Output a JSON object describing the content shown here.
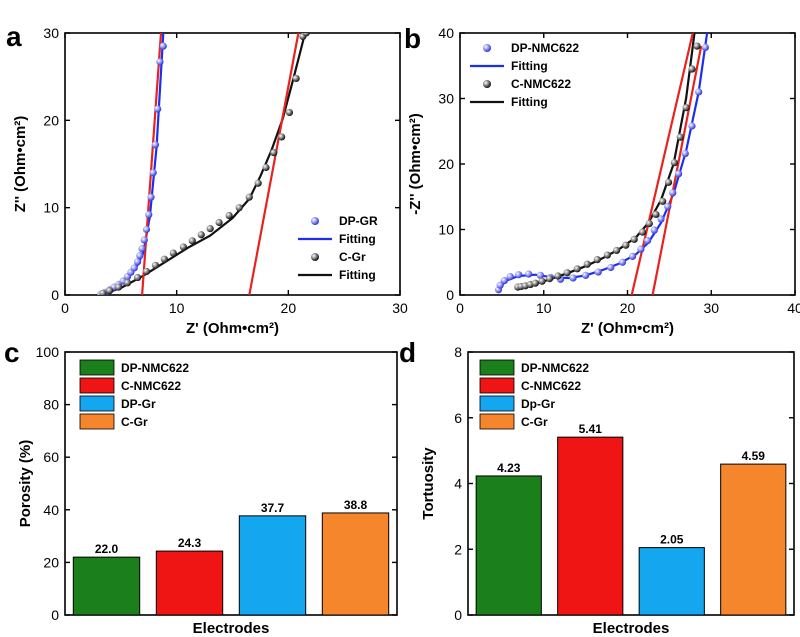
{
  "chart_data": [
    {
      "panel": "a",
      "type": "scatter",
      "xlabel": "Z' (Ohm•cm²)",
      "ylabel": "Z'' (Ohm•cm²)",
      "xlim": [
        0,
        30
      ],
      "ylim": [
        0,
        30
      ],
      "xticks": [
        0,
        10,
        20,
        30
      ],
      "yticks": [
        0,
        10,
        20,
        30
      ],
      "legend_position": "right",
      "series": [
        {
          "name": "DP-GR",
          "kind": "points",
          "color": "#2f36e0",
          "x": [
            3.2,
            3.6,
            4.0,
            4.4,
            4.8,
            5.2,
            5.6,
            5.9,
            6.2,
            6.5,
            6.7,
            6.9,
            7.1,
            7.3,
            7.5,
            7.7,
            7.9,
            8.1,
            8.3,
            8.5,
            8.8
          ],
          "y": [
            0.1,
            0.3,
            0.6,
            0.9,
            1.2,
            1.6,
            2.1,
            2.6,
            3.1,
            3.8,
            4.5,
            5.3,
            6.3,
            7.5,
            9.2,
            11.2,
            14.0,
            17.2,
            21.3,
            26.7,
            28.5
          ]
        },
        {
          "name": "Fitting",
          "kind": "line",
          "color": "#1a2ff0",
          "x": [
            3.2,
            4.0,
            4.8,
            5.6,
            6.4,
            7.0,
            7.6,
            8.2,
            8.8
          ],
          "y": [
            0.1,
            0.5,
            1.1,
            2.0,
            3.2,
            4.8,
            9.0,
            17.0,
            30.0
          ]
        },
        {
          "name": "C-Gr",
          "kind": "points",
          "color": "#111111",
          "x": [
            3.4,
            4.0,
            4.8,
            5.6,
            6.5,
            7.3,
            8.1,
            8.9,
            9.7,
            10.6,
            11.4,
            12.2,
            13.0,
            13.8,
            14.7,
            15.6,
            16.5,
            17.3,
            18.0,
            18.7,
            19.4,
            20.1,
            20.7,
            21.3,
            21.6
          ],
          "y": [
            0.2,
            0.5,
            0.9,
            1.4,
            2.0,
            2.7,
            3.4,
            4.1,
            4.8,
            5.5,
            6.2,
            6.9,
            7.6,
            8.3,
            9.1,
            10.0,
            11.2,
            12.8,
            14.6,
            16.3,
            18.1,
            20.9,
            24.8,
            29.6,
            30.0
          ]
        },
        {
          "name": "Fitting",
          "kind": "line",
          "color": "#111111",
          "x": [
            3.4,
            5.0,
            7.0,
            9.0,
            11.0,
            13.0,
            15.0,
            16.5,
            17.5,
            18.5,
            19.5,
            20.5,
            21.5
          ],
          "y": [
            0.1,
            0.8,
            2.2,
            3.8,
            5.4,
            6.8,
            8.8,
            11.0,
            13.6,
            16.6,
            20.2,
            25.0,
            30.0
          ]
        },
        {
          "name": "",
          "kind": "fit-line",
          "color": "#e8231f",
          "x": [
            6.9,
            8.6
          ],
          "y": [
            0,
            30
          ]
        },
        {
          "name": "",
          "kind": "fit-line",
          "color": "#e8231f",
          "x": [
            16.5,
            20.9
          ],
          "y": [
            0,
            30
          ]
        }
      ]
    },
    {
      "panel": "b",
      "type": "scatter",
      "xlabel": "Z' (Ohm•cm²)",
      "ylabel": "-Z'' (Ohm•cm²)",
      "xlim": [
        0,
        40
      ],
      "ylim": [
        0,
        40
      ],
      "xticks": [
        0,
        10,
        20,
        30,
        40
      ],
      "yticks": [
        0,
        10,
        20,
        30,
        40
      ],
      "legend_position": "top-left",
      "series": [
        {
          "name": "DP-NMC622",
          "kind": "points",
          "color": "#2f36e0",
          "x": [
            4.6,
            4.8,
            5.3,
            6.0,
            7.0,
            8.2,
            9.6,
            10.8,
            12.0,
            13.5,
            15.0,
            16.5,
            18.0,
            19.4,
            20.6,
            21.6,
            22.4,
            23.2,
            24.0,
            24.8,
            25.4,
            26.1,
            26.9,
            27.7,
            28.5,
            29.3
          ],
          "y": [
            0.8,
            1.5,
            2.2,
            2.8,
            3.1,
            3.2,
            3.0,
            2.7,
            2.4,
            2.6,
            3.0,
            3.5,
            4.2,
            5.0,
            5.9,
            7.0,
            8.3,
            9.9,
            11.6,
            13.5,
            15.6,
            18.5,
            21.6,
            25.8,
            31.0,
            37.8
          ]
        },
        {
          "name": "Fitting",
          "kind": "line",
          "color": "#1a2ff0",
          "x": [
            4.5,
            5.5,
            7.0,
            9.0,
            11.0,
            13.0,
            15.0,
            17.0,
            19.0,
            21.0,
            22.5,
            24.0,
            25.5,
            27.0,
            28.5,
            29.5
          ],
          "y": [
            0.8,
            2.2,
            2.9,
            3.1,
            2.7,
            2.6,
            3.0,
            3.8,
            4.8,
            6.2,
            8.0,
            11.0,
            15.5,
            22.0,
            31.0,
            40.0
          ]
        },
        {
          "name": "C-NMC622",
          "kind": "points",
          "color": "#111111",
          "x": [
            6.9,
            7.3,
            7.8,
            8.4,
            9.0,
            9.8,
            10.7,
            11.7,
            12.8,
            14.0,
            15.2,
            16.4,
            17.6,
            18.7,
            19.8,
            20.8,
            21.8,
            22.6,
            23.4,
            24.2,
            24.9,
            25.6,
            26.3,
            27.0,
            27.7,
            28.3
          ],
          "y": [
            1.2,
            1.3,
            1.4,
            1.6,
            1.8,
            2.1,
            2.5,
            2.9,
            3.4,
            4.0,
            4.7,
            5.4,
            6.1,
            6.8,
            7.6,
            8.5,
            9.6,
            10.9,
            12.3,
            14.3,
            17.2,
            20.2,
            24.1,
            28.6,
            34.5,
            38.0
          ]
        },
        {
          "name": "Fitting",
          "kind": "line",
          "color": "#111111",
          "x": [
            7.0,
            9.0,
            11.0,
            13.0,
            15.0,
            17.0,
            19.0,
            21.0,
            22.5,
            24.0,
            25.5,
            27.0,
            28.0
          ],
          "y": [
            1.2,
            1.7,
            2.5,
            3.4,
            4.4,
            5.6,
            7.0,
            8.8,
            11.0,
            14.5,
            20.0,
            30.0,
            40.0
          ]
        },
        {
          "name": "",
          "kind": "fit-line",
          "color": "#e8231f",
          "x": [
            20.5,
            27.8
          ],
          "y": [
            0,
            40
          ]
        },
        {
          "name": "",
          "kind": "fit-line",
          "color": "#e8231f",
          "x": [
            23.0,
            28.8
          ],
          "y": [
            0,
            38
          ]
        }
      ]
    },
    {
      "panel": "c",
      "type": "bar",
      "xlabel": "Electrodes",
      "ylabel": "Porosity (%)",
      "ylim": [
        0,
        100
      ],
      "yticks": [
        0,
        20,
        40,
        60,
        80,
        100
      ],
      "legend_position": "top-left",
      "categories": [
        "DP-NMC622",
        "C-NMC622",
        "DP-Gr",
        "C-Gr"
      ],
      "values": [
        22.0,
        24.3,
        37.7,
        38.8
      ],
      "value_labels": [
        "22.0",
        "24.3",
        "37.7",
        "38.8"
      ],
      "colors": [
        "#1b7f1b",
        "#f01515",
        "#14a6ee",
        "#f5862c"
      ]
    },
    {
      "panel": "d",
      "type": "bar",
      "xlabel": "Electrodes",
      "ylabel": "Tortuosity",
      "ylim": [
        0,
        8
      ],
      "yticks": [
        0,
        2,
        4,
        6,
        8
      ],
      "legend_position": "top-left",
      "categories": [
        "DP-NMC622",
        "C-NMC622",
        "Dp-Gr",
        "C-Gr"
      ],
      "values": [
        4.23,
        5.41,
        2.05,
        4.59
      ],
      "value_labels": [
        "4.23",
        "5.41",
        "2.05",
        "4.59"
      ],
      "colors": [
        "#1b7f1b",
        "#f01515",
        "#14a6ee",
        "#f5862c"
      ]
    }
  ]
}
